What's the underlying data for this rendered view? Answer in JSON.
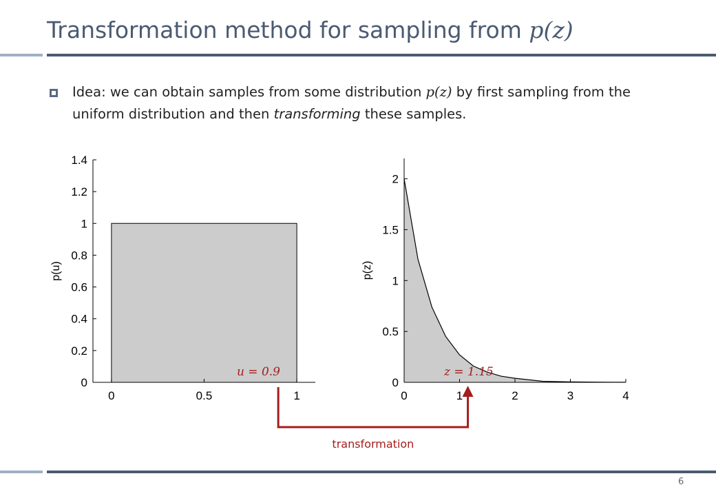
{
  "slide": {
    "title_text": "Transformation method for sampling from ",
    "title_math": "p(z)",
    "bullet": {
      "part1": "Idea: we can obtain samples from some distribution ",
      "math": "p(z)",
      "part2": " by first sampling from the uniform distribution and then ",
      "emphasis": "transforming",
      "part3": " these samples."
    },
    "page_number": "6"
  },
  "colors": {
    "title": "#4a5a72",
    "rule_dark": "#4a5a72",
    "rule_light": "#9fb0c7",
    "fill": "#cccccc",
    "accent": "#a51c1c"
  },
  "chart_data": [
    {
      "type": "area",
      "ylabel": "p(u)",
      "xlabel": "",
      "xlim": [
        -0.1,
        1.1
      ],
      "ylim": [
        0,
        1.4
      ],
      "xticks": [
        "0",
        "0.5",
        "1"
      ],
      "yticks": [
        "0",
        "0.2",
        "0.4",
        "0.6",
        "0.8",
        "1",
        "1.2",
        "1.4"
      ],
      "x": [
        0,
        1
      ],
      "y": [
        1,
        1
      ],
      "annotation": "u = 0.9",
      "grid": false
    },
    {
      "type": "area",
      "ylabel": "p(z)",
      "xlabel": "",
      "xlim": [
        0,
        4
      ],
      "ylim": [
        0,
        2.2
      ],
      "xticks": [
        "0",
        "1",
        "2",
        "3",
        "4"
      ],
      "yticks": [
        "0",
        "0.5",
        "1",
        "1.5",
        "2"
      ],
      "x": [
        0,
        0.25,
        0.5,
        0.75,
        1,
        1.25,
        1.5,
        1.75,
        2,
        2.5,
        3,
        3.5,
        4
      ],
      "y": [
        2.0,
        1.21,
        0.74,
        0.45,
        0.27,
        0.16,
        0.1,
        0.06,
        0.04,
        0.01,
        0.005,
        0.002,
        0.001
      ],
      "annotation": "z = 1.15",
      "grid": false
    }
  ],
  "arrow_label": "transformation"
}
